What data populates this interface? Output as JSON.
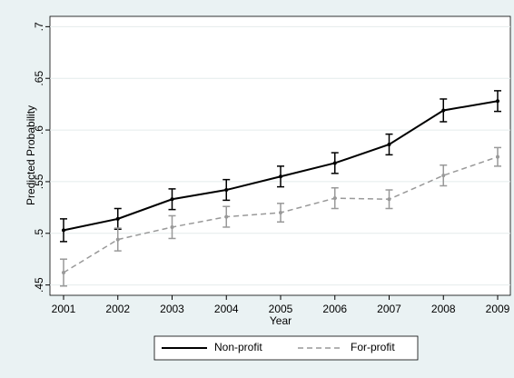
{
  "chart_data": {
    "type": "line",
    "x": [
      2001,
      2002,
      2003,
      2004,
      2005,
      2006,
      2007,
      2008,
      2009
    ],
    "series": [
      {
        "name": "Non-profit",
        "color": "#000000",
        "dash": false,
        "values": [
          0.503,
          0.514,
          0.533,
          0.542,
          0.555,
          0.568,
          0.586,
          0.619,
          0.628
        ],
        "errors": [
          0.011,
          0.01,
          0.01,
          0.01,
          0.01,
          0.01,
          0.01,
          0.011,
          0.01
        ]
      },
      {
        "name": "For-profit",
        "color": "#999999",
        "dash": true,
        "values": [
          0.462,
          0.494,
          0.506,
          0.516,
          0.52,
          0.534,
          0.533,
          0.556,
          0.574
        ],
        "errors": [
          0.013,
          0.011,
          0.011,
          0.01,
          0.009,
          0.01,
          0.009,
          0.01,
          0.009
        ]
      }
    ],
    "xlabel": "Year",
    "ylabel": "Predicted Probability",
    "xlim": [
      2001,
      2009
    ],
    "ylim": [
      0.44,
      0.71
    ],
    "xticks": [
      2001,
      2002,
      2003,
      2004,
      2005,
      2006,
      2007,
      2008,
      2009
    ],
    "yticks": [
      {
        "value": 0.45,
        "label": ".45"
      },
      {
        "value": 0.5,
        "label": ".5"
      },
      {
        "value": 0.55,
        "label": ".55"
      },
      {
        "value": 0.6,
        "label": ".6"
      },
      {
        "value": 0.65,
        "label": ".65"
      },
      {
        "value": 0.7,
        "label": ".7"
      }
    ],
    "grid": true,
    "legend": "bottom"
  }
}
